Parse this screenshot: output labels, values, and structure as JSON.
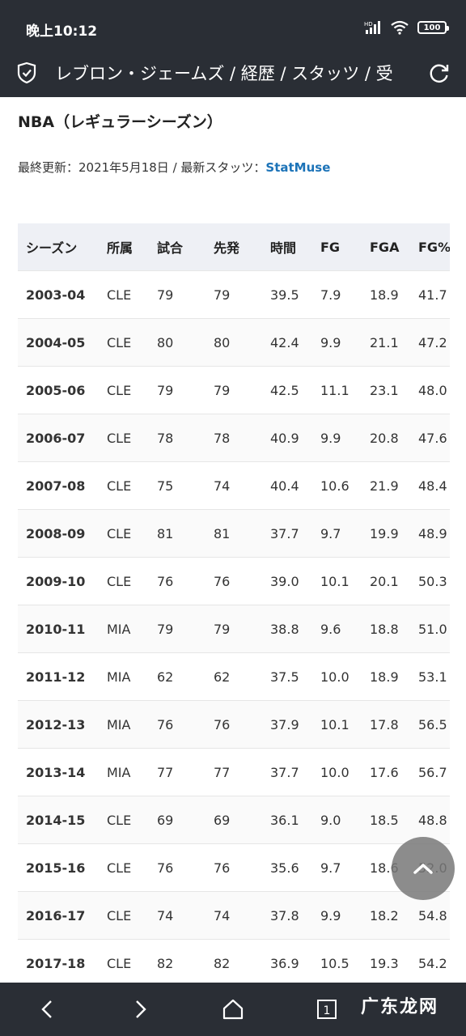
{
  "status_bar": {
    "time": "晚上10:12",
    "network": "HD",
    "battery": "100"
  },
  "app_bar": {
    "title": "レブロン・ジェームズ / 経歴 / スタッツ / 受"
  },
  "section_title": "NBA（レギュラーシーズン）",
  "update": {
    "prefix": "最終更新：2021年5月18日 / 最新スタッツ：",
    "source_link": "StatMuse"
  },
  "table": {
    "headers": [
      "シーズン",
      "所属",
      "試合",
      "先発",
      "時間",
      "FG",
      "FGA",
      "FG%"
    ],
    "rows": [
      [
        "2003-04",
        "CLE",
        "79",
        "79",
        "39.5",
        "7.9",
        "18.9",
        "41.7"
      ],
      [
        "2004-05",
        "CLE",
        "80",
        "80",
        "42.4",
        "9.9",
        "21.1",
        "47.2"
      ],
      [
        "2005-06",
        "CLE",
        "79",
        "79",
        "42.5",
        "11.1",
        "23.1",
        "48.0"
      ],
      [
        "2006-07",
        "CLE",
        "78",
        "78",
        "40.9",
        "9.9",
        "20.8",
        "47.6"
      ],
      [
        "2007-08",
        "CLE",
        "75",
        "74",
        "40.4",
        "10.6",
        "21.9",
        "48.4"
      ],
      [
        "2008-09",
        "CLE",
        "81",
        "81",
        "37.7",
        "9.7",
        "19.9",
        "48.9"
      ],
      [
        "2009-10",
        "CLE",
        "76",
        "76",
        "39.0",
        "10.1",
        "20.1",
        "50.3"
      ],
      [
        "2010-11",
        "MIA",
        "79",
        "79",
        "38.8",
        "9.6",
        "18.8",
        "51.0"
      ],
      [
        "2011-12",
        "MIA",
        "62",
        "62",
        "37.5",
        "10.0",
        "18.9",
        "53.1"
      ],
      [
        "2012-13",
        "MIA",
        "76",
        "76",
        "37.9",
        "10.1",
        "17.8",
        "56.5"
      ],
      [
        "2013-14",
        "MIA",
        "77",
        "77",
        "37.7",
        "10.0",
        "17.6",
        "56.7"
      ],
      [
        "2014-15",
        "CLE",
        "69",
        "69",
        "36.1",
        "9.0",
        "18.5",
        "48.8"
      ],
      [
        "2015-16",
        "CLE",
        "76",
        "76",
        "35.6",
        "9.7",
        "18.6",
        "52.0"
      ],
      [
        "2016-17",
        "CLE",
        "74",
        "74",
        "37.8",
        "9.9",
        "18.2",
        "54.8"
      ],
      [
        "2017-18",
        "CLE",
        "82",
        "82",
        "36.9",
        "10.5",
        "19.3",
        "54.2"
      ]
    ]
  },
  "watermark": "广东龙网",
  "icons": {
    "shield": "shield-icon",
    "refresh": "refresh-icon",
    "scroll_top": "chevron-up-icon",
    "back": "back-icon",
    "forward": "forward-icon",
    "home": "home-icon",
    "tabs": "tabs-icon"
  },
  "nav": {
    "tab_count": "1"
  },
  "colors": {
    "bar_bg": "#2a2e35",
    "header_row_bg": "#eef0f5",
    "link": "#1c73b8"
  }
}
